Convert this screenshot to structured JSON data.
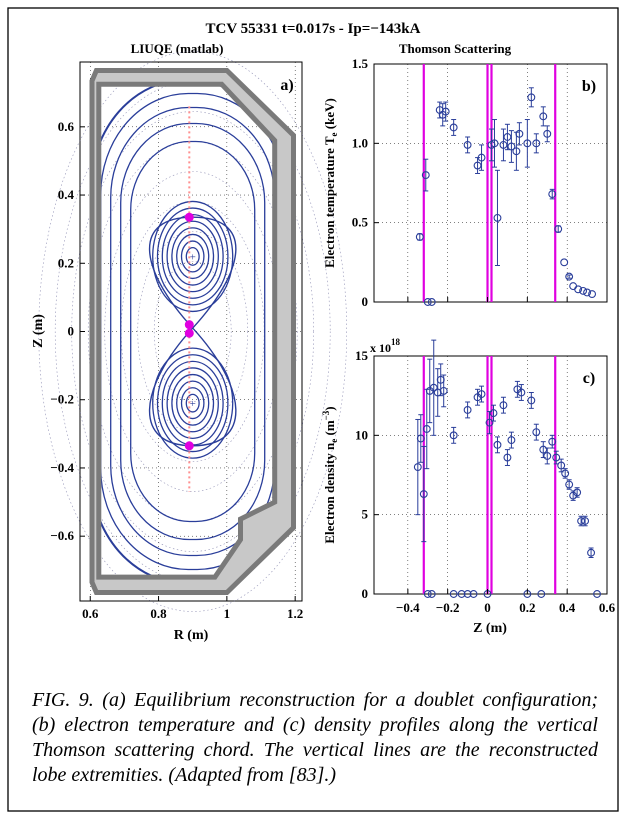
{
  "figure": {
    "title": "TCV 55331 t=0.017s - Ip=−143kA",
    "caption": "FIG. 9. (a) Equilibrium reconstruction for a doublet configuration; (b) electron temperature and (c) density profiles along the vertical Thomson scattering chord. The vertical lines are the reconstructed lobe extremities. (Adapted from [83].)"
  },
  "chart_data": [
    {
      "type": "scatter",
      "panel_label": "a)",
      "title": "LIUQE (matlab)",
      "xlabel": "R (m)",
      "ylabel": "Z (m)",
      "xlim": [
        0.57,
        1.22
      ],
      "ylim": [
        -0.79,
        0.79
      ],
      "xticks": [
        "0.6",
        "0.8",
        "1",
        "1.2"
      ],
      "yticks": [
        "0.6",
        "0.4",
        "0.2",
        "0",
        "−0.2",
        "−0.4",
        "−0.6"
      ],
      "grid": "dotted",
      "magnetic_axes": [
        {
          "R": 0.9,
          "Z": 0.22
        },
        {
          "R": 0.9,
          "Z": -0.21
        }
      ],
      "x_point": {
        "R": 0.9,
        "Z": 0.01
      },
      "thomson_chord_R": 0.89,
      "lobe_extremities_Z": [
        0.335,
        0.02,
        -0.005,
        -0.335
      ],
      "colors": {
        "vessel": "#808080",
        "flux_surfaces": "#2a3e9a",
        "chord": "#ff8f8f",
        "extremities": "#e000e0"
      }
    },
    {
      "type": "scatter",
      "panel_label": "b)",
      "title": "Thomson Scattering",
      "xlabel": "",
      "ylabel": "Electron temperature T_e (keV)",
      "xlim": [
        -0.57,
        0.6
      ],
      "ylim": [
        0,
        1.5
      ],
      "yticks": [
        "0",
        "0.5",
        "1.0",
        "1.5"
      ],
      "grid": "dotted",
      "lobe_extremities_Z": [
        -0.32,
        0,
        0.02,
        0.34
      ],
      "series": [
        {
          "values": [
            {
              "x": -0.34,
              "y": 0.41,
              "err": 0.02
            },
            {
              "x": -0.31,
              "y": 0.8,
              "err": 0.1
            },
            {
              "x": -0.24,
              "y": 1.21,
              "err": 0.05
            },
            {
              "x": -0.225,
              "y": 1.18,
              "err": 0.07
            },
            {
              "x": -0.21,
              "y": 1.2,
              "err": 0.06
            },
            {
              "x": -0.17,
              "y": 1.1,
              "err": 0.05
            },
            {
              "x": -0.1,
              "y": 0.99,
              "err": 0.05
            },
            {
              "x": -0.05,
              "y": 0.86,
              "err": 0.05
            },
            {
              "x": -0.03,
              "y": 0.91,
              "err": 0.08
            },
            {
              "x": 0.02,
              "y": 0.99,
              "err": 0.1
            },
            {
              "x": 0.035,
              "y": 1.0,
              "err": 0.15
            },
            {
              "x": 0.05,
              "y": 0.53,
              "err": 0.3
            },
            {
              "x": 0.08,
              "y": 0.99,
              "err": 0.1
            },
            {
              "x": 0.1,
              "y": 1.04,
              "err": 0.08
            },
            {
              "x": 0.12,
              "y": 0.98,
              "err": 0.1
            },
            {
              "x": 0.145,
              "y": 0.95,
              "err": 0.12
            },
            {
              "x": 0.16,
              "y": 1.06,
              "err": 0.07
            },
            {
              "x": 0.2,
              "y": 1.0,
              "err": 0.15
            },
            {
              "x": 0.22,
              "y": 1.29,
              "err": 0.06
            },
            {
              "x": 0.245,
              "y": 1.0,
              "err": 0.06
            },
            {
              "x": 0.28,
              "y": 1.17,
              "err": 0.06
            },
            {
              "x": 0.3,
              "y": 1.06,
              "err": 0.05
            },
            {
              "x": 0.325,
              "y": 0.68,
              "err": 0.03
            },
            {
              "x": 0.355,
              "y": 0.46,
              "err": 0.02
            },
            {
              "x": 0.385,
              "y": 0.25,
              "err": 0
            },
            {
              "x": 0.41,
              "y": 0.16,
              "err": 0.01
            },
            {
              "x": 0.43,
              "y": 0.1,
              "err": 0
            },
            {
              "x": 0.455,
              "y": 0.08,
              "err": 0
            },
            {
              "x": 0.48,
              "y": 0.07,
              "err": 0
            },
            {
              "x": 0.5,
              "y": 0.06,
              "err": 0
            },
            {
              "x": 0.525,
              "y": 0.05,
              "err": 0
            },
            {
              "x": -0.3,
              "y": 0,
              "err": 0
            },
            {
              "x": -0.28,
              "y": 0,
              "err": 0
            }
          ]
        }
      ]
    },
    {
      "type": "scatter",
      "panel_label": "c)",
      "title": "",
      "xlabel": "Z (m)",
      "ylabel": "Electron density n_e (m^−3)",
      "multiplier": "x 10",
      "multiplier_exp": "18",
      "xlim": [
        -0.57,
        0.6
      ],
      "ylim": [
        0,
        15
      ],
      "xticks": [
        "−0.4",
        "−0.2",
        "0",
        "0.2",
        "0.4",
        "0.6"
      ],
      "yticks": [
        "0",
        "5",
        "10",
        "15"
      ],
      "grid": "dotted",
      "lobe_extremities_Z": [
        -0.32,
        0,
        0.02,
        0.34
      ],
      "series": [
        {
          "values": [
            {
              "x": -0.35,
              "y": 8.0,
              "err": 3.0
            },
            {
              "x": -0.335,
              "y": 9.8,
              "err": 1.5
            },
            {
              "x": -0.32,
              "y": 6.3,
              "err": 3.0
            },
            {
              "x": -0.305,
              "y": 10.4,
              "err": 2.5
            },
            {
              "x": -0.29,
              "y": 12.8,
              "err": 2.0
            },
            {
              "x": -0.27,
              "y": 13.0,
              "err": 3.0
            },
            {
              "x": -0.25,
              "y": 12.7,
              "err": 1.5
            },
            {
              "x": -0.235,
              "y": 13.5,
              "err": 1.0
            },
            {
              "x": -0.22,
              "y": 12.8,
              "err": 1.0
            },
            {
              "x": -0.17,
              "y": 10.0,
              "err": 0.5
            },
            {
              "x": -0.1,
              "y": 11.6,
              "err": 0.5
            },
            {
              "x": -0.05,
              "y": 12.4,
              "err": 0.5
            },
            {
              "x": -0.03,
              "y": 12.6,
              "err": 0.5
            },
            {
              "x": 0.01,
              "y": 10.8,
              "err": 0.7
            },
            {
              "x": 0.03,
              "y": 11.4,
              "err": 0.5
            },
            {
              "x": 0.05,
              "y": 9.4,
              "err": 0.5
            },
            {
              "x": 0.08,
              "y": 11.9,
              "err": 0.5
            },
            {
              "x": 0.1,
              "y": 8.6,
              "err": 0.5
            },
            {
              "x": 0.12,
              "y": 9.7,
              "err": 0.5
            },
            {
              "x": 0.15,
              "y": 12.9,
              "err": 0.5
            },
            {
              "x": 0.17,
              "y": 12.7,
              "err": 0.5
            },
            {
              "x": 0.22,
              "y": 12.2,
              "err": 0.5
            },
            {
              "x": 0.245,
              "y": 10.2,
              "err": 0.5
            },
            {
              "x": 0.28,
              "y": 9.1,
              "err": 0.5
            },
            {
              "x": 0.3,
              "y": 8.7,
              "err": 0.5
            },
            {
              "x": 0.325,
              "y": 9.6,
              "err": 0.4
            },
            {
              "x": 0.345,
              "y": 8.6,
              "err": 0.4
            },
            {
              "x": 0.37,
              "y": 8.1,
              "err": 0.4
            },
            {
              "x": 0.39,
              "y": 7.6,
              "err": 0.3
            },
            {
              "x": 0.41,
              "y": 6.9,
              "err": 0.3
            },
            {
              "x": 0.43,
              "y": 6.2,
              "err": 0.3
            },
            {
              "x": 0.45,
              "y": 6.4,
              "err": 0.3
            },
            {
              "x": 0.47,
              "y": 4.6,
              "err": 0.3
            },
            {
              "x": 0.49,
              "y": 4.6,
              "err": 0.3
            },
            {
              "x": 0.52,
              "y": 2.6,
              "err": 0.3
            },
            {
              "x": -0.3,
              "y": 0,
              "err": 0
            },
            {
              "x": -0.28,
              "y": 0,
              "err": 0
            },
            {
              "x": -0.17,
              "y": 0,
              "err": 0
            },
            {
              "x": -0.13,
              "y": 0,
              "err": 0
            },
            {
              "x": -0.1,
              "y": 0,
              "err": 0
            },
            {
              "x": -0.07,
              "y": 0,
              "err": 0
            },
            {
              "x": 0.0,
              "y": 0,
              "err": 0
            },
            {
              "x": 0.2,
              "y": 0,
              "err": 0
            },
            {
              "x": 0.27,
              "y": 0,
              "err": 0
            },
            {
              "x": 0.55,
              "y": 0,
              "err": 0
            }
          ]
        }
      ]
    }
  ]
}
